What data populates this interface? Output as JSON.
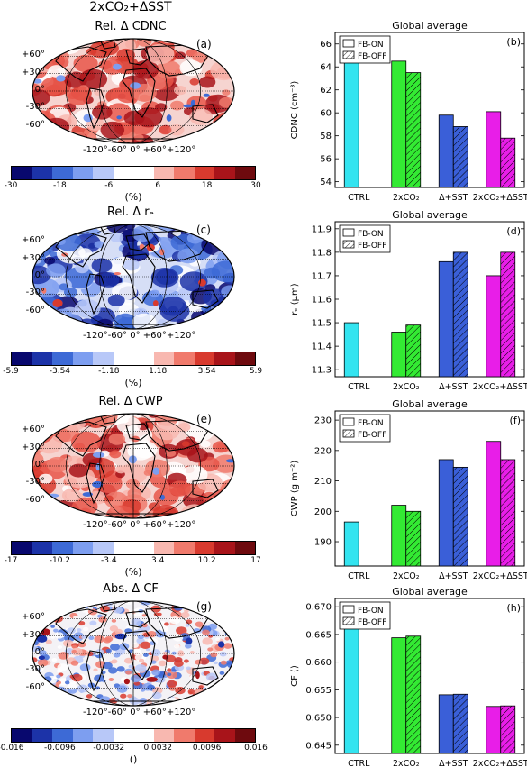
{
  "figure_title": "2xCO₂+ΔSST",
  "maps": [
    {
      "title": "Rel. Δ CDNC",
      "label": "(a)",
      "cb_ticks": [
        "-30",
        "-18",
        "-6",
        "6",
        "18",
        "30"
      ],
      "unit": "(%)",
      "tone": "red"
    },
    {
      "title": "Rel. Δ rₑ",
      "label": "(c)",
      "cb_ticks": [
        "-5.9",
        "-3.54",
        "-1.18",
        "1.18",
        "3.54",
        "5.9"
      ],
      "unit": "(%)",
      "tone": "blue"
    },
    {
      "title": "Rel. Δ CWP",
      "label": "(e)",
      "cb_ticks": [
        "-17",
        "-10.2",
        "-3.4",
        "3.4",
        "10.2",
        "17"
      ],
      "unit": "(%)",
      "tone": "red"
    },
    {
      "title": "Abs. Δ CF",
      "label": "(g)",
      "cb_ticks": [
        "-0.016",
        "-0.0096",
        "-0.0032",
        "0.0032",
        "0.0096",
        "0.016"
      ],
      "unit": "()",
      "tone": "mixed"
    }
  ],
  "lat_labels": [
    "+60°",
    "+30°",
    "0°",
    "-30°",
    "-60°"
  ],
  "lon_labels": "-120°-60°  0°  +60°+120°",
  "colorbar_colors": [
    "#08086e",
    "#1c33a8",
    "#3d6ad6",
    "#7d9ef0",
    "#b8c8f8",
    "#ffffff",
    "#ffffff",
    "#f8b8b0",
    "#f07a6c",
    "#d83a2e",
    "#a8141a",
    "#6e0a0e"
  ],
  "legend": {
    "on": "FB-ON",
    "off": "FB-OFF"
  },
  "bar_colors": [
    "#33e4f0",
    "#33ea33",
    "#3a5fd8",
    "#e81ee8"
  ],
  "chart_data": [
    {
      "type": "bar",
      "label": "(b)",
      "title": "Global average",
      "ylabel": "CDNC (cm⁻³)",
      "categories": [
        "CTRL",
        "2xCO₂",
        "Δ+SST",
        "2xCO₂+ΔSST"
      ],
      "series": [
        {
          "name": "FB-ON",
          "values": [
            64.8,
            64.5,
            59.8,
            60.1
          ]
        },
        {
          "name": "FB-OFF",
          "values": [
            null,
            63.5,
            58.8,
            57.8
          ]
        }
      ],
      "ylim": [
        53.5,
        67
      ],
      "yticks": [
        "54",
        "56",
        "58",
        "60",
        "62",
        "64",
        "66"
      ],
      "ytick_vals": [
        54,
        56,
        58,
        60,
        62,
        64,
        66
      ]
    },
    {
      "type": "bar",
      "label": "(d)",
      "title": "Global average",
      "ylabel": "rₑ (μm)",
      "categories": [
        "CTRL",
        "2xCO₂",
        "Δ+SST",
        "2xCO₂+ΔSST"
      ],
      "series": [
        {
          "name": "FB-ON",
          "values": [
            11.5,
            11.46,
            11.76,
            11.7
          ]
        },
        {
          "name": "FB-OFF",
          "values": [
            null,
            11.49,
            11.8,
            11.8
          ]
        }
      ],
      "ylim": [
        11.27,
        11.93
      ],
      "yticks": [
        "11.3",
        "11.4",
        "11.5",
        "11.6",
        "11.7",
        "11.8",
        "11.9"
      ],
      "ytick_vals": [
        11.3,
        11.4,
        11.5,
        11.6,
        11.7,
        11.8,
        11.9
      ]
    },
    {
      "type": "bar",
      "label": "(f)",
      "title": "Global average",
      "ylabel": "CWP (g m⁻²)",
      "categories": [
        "CTRL",
        "2xCO₂",
        "Δ+SST",
        "2xCO₂+ΔSST"
      ],
      "series": [
        {
          "name": "FB-ON",
          "values": [
            196.5,
            202,
            217,
            223
          ]
        },
        {
          "name": "FB-OFF",
          "values": [
            null,
            200,
            214.5,
            217
          ]
        }
      ],
      "ylim": [
        182,
        233
      ],
      "yticks": [
        "190",
        "200",
        "210",
        "220",
        "230"
      ],
      "ytick_vals": [
        190,
        200,
        210,
        220,
        230
      ]
    },
    {
      "type": "bar",
      "label": "(h)",
      "title": "Global average",
      "ylabel": "CF ()",
      "categories": [
        "CTRL",
        "2xCO₂",
        "Δ+SST",
        "2xCO₂+ΔSST"
      ],
      "series": [
        {
          "name": "FB-ON",
          "values": [
            0.667,
            0.6644,
            0.6541,
            0.652
          ]
        },
        {
          "name": "FB-OFF",
          "values": [
            null,
            0.6647,
            0.6542,
            0.6521
          ]
        }
      ],
      "ylim": [
        0.6435,
        0.6715
      ],
      "yticks": [
        "0.645",
        "0.650",
        "0.655",
        "0.660",
        "0.665",
        "0.670"
      ],
      "ytick_vals": [
        0.645,
        0.65,
        0.655,
        0.66,
        0.665,
        0.67
      ]
    }
  ]
}
